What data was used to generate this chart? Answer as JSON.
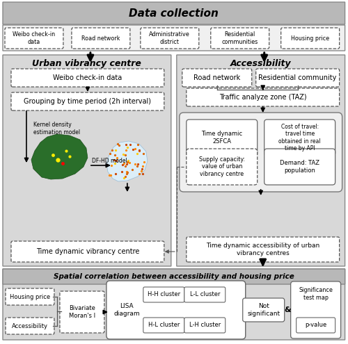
{
  "bg_color": "#f5f5f5",
  "gray_header_color": "#aaaaaa",
  "section_bg": "#d8d8d8",
  "white": "#ffffff",
  "title": "Data collection",
  "section1_title": "Urban vibrancy centre",
  "section2_title": "Accessibility",
  "section3_title": "Spatial correlation between accessibility and housing price",
  "data_items": [
    "Weibo check-in\ndata",
    "Road network",
    "Administrative\ndistrict",
    "Residential\ncommunities",
    "Housing price"
  ],
  "uvc_box1": "Weibo check-in data",
  "uvc_box2": "Grouping by time period (2h interval)",
  "uvc_box3": "Time dynamic vibrancy centre",
  "kde_label": "Kernel density\nestimation model",
  "dfhd_label": "DF-HD model",
  "acc_box1": "Road network",
  "acc_box2": "Residential community",
  "acc_box3": "Traffic analyze zone (TAZ)",
  "acc_inner_tl": "Time dynamic\n2SFCA",
  "acc_inner_tr": "Cost of travel:\ntravel time\nobtained in real\ntime by API",
  "acc_inner_bl": "Supply capacity:\nvalue of urban\nvibrancy centre",
  "acc_inner_br": "Demand: TAZ\npopulation",
  "acc_box4": "Time dynamic accessibility of urban\nvibrancy centres",
  "bot_item1": "Housing price",
  "bot_item2": "Accessibility",
  "bivariate": "Bivariate\nMoran's I",
  "lisa_label": "LISA\ndiagram",
  "clusters": [
    "H-H cluster",
    "L-L cluster",
    "H-L cluster",
    "L-H cluster"
  ],
  "not_sig": "Not\nsignificant",
  "sig_map": "Significance\ntest map",
  "pvalue": "p-value"
}
